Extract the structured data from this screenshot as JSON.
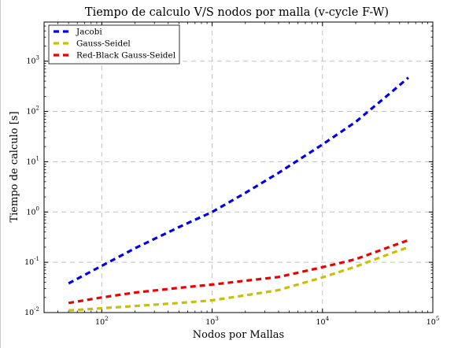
{
  "chart_data": {
    "type": "line",
    "title": "Tiempo de calculo V/S nodos por malla (v-cycle F-W)",
    "xlabel": "Nodos por Mallas",
    "ylabel": "Tiempo de calculo [s]",
    "x_scale": "log",
    "y_scale": "log",
    "xlim": [
      30,
      100000
    ],
    "ylim": [
      0.01,
      6000
    ],
    "x_ticks": [
      {
        "value": 100,
        "base": "10",
        "exp": "2"
      },
      {
        "value": 1000,
        "base": "10",
        "exp": "3"
      },
      {
        "value": 10000,
        "base": "10",
        "exp": "4"
      },
      {
        "value": 100000,
        "base": "10",
        "exp": "5"
      }
    ],
    "y_ticks": [
      {
        "value": 0.01,
        "base": "10",
        "exp": "-2"
      },
      {
        "value": 0.1,
        "base": "10",
        "exp": "-1"
      },
      {
        "value": 1,
        "base": "10",
        "exp": "0"
      },
      {
        "value": 10,
        "base": "10",
        "exp": "1"
      },
      {
        "value": 100,
        "base": "10",
        "exp": "2"
      },
      {
        "value": 1000,
        "base": "10",
        "exp": "3"
      }
    ],
    "grid": true,
    "legend_position": "top-left",
    "series": [
      {
        "name": "Jacobi",
        "color": "#0000ee",
        "x": [
          50,
          100,
          200,
          500,
          1000,
          2000,
          4000,
          10000,
          20000,
          40000,
          60000
        ],
        "y": [
          0.038,
          0.085,
          0.19,
          0.5,
          1.0,
          2.4,
          6.0,
          22,
          62,
          220,
          470
        ]
      },
      {
        "name": "Gauss-Seidel",
        "color": "#c8c000",
        "x": [
          50,
          100,
          200,
          500,
          1000,
          2000,
          4000,
          10000,
          20000,
          40000,
          60000
        ],
        "y": [
          0.011,
          0.0122,
          0.0135,
          0.0155,
          0.0175,
          0.022,
          0.028,
          0.05,
          0.082,
          0.145,
          0.2
        ]
      },
      {
        "name": "Red-Black Gauss-Seidel",
        "color": "#ee0000",
        "x": [
          50,
          100,
          200,
          500,
          1000,
          2000,
          4000,
          10000,
          20000,
          40000,
          60000
        ],
        "y": [
          0.0155,
          0.02,
          0.025,
          0.031,
          0.036,
          0.043,
          0.051,
          0.08,
          0.115,
          0.2,
          0.275
        ]
      }
    ]
  }
}
